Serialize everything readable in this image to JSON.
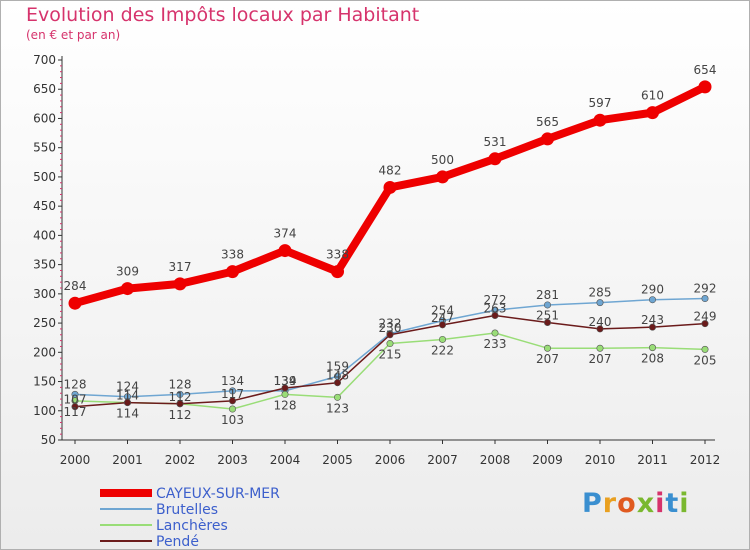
{
  "title": "Evolution des Impôts locaux par Habitant",
  "subtitle": "(en € et par an)",
  "logo": {
    "letters": [
      "P",
      "r",
      "o",
      "x",
      "i",
      "t",
      "i"
    ]
  },
  "chart_data": {
    "type": "line",
    "title": "Evolution des Impôts locaux par Habitant",
    "subtitle": "(en € et par an)",
    "xlabel": "",
    "ylabel": "",
    "ylim": [
      50,
      700
    ],
    "yticks": [
      50,
      100,
      150,
      200,
      250,
      300,
      350,
      400,
      450,
      500,
      550,
      600,
      650,
      700
    ],
    "x": [
      "2000",
      "2001",
      "2002",
      "2003",
      "2004",
      "2005",
      "2006",
      "2007",
      "2008",
      "2009",
      "2010",
      "2011",
      "2012"
    ],
    "grid": false,
    "legend_position": "bottom-left",
    "series": [
      {
        "name": "CAYEUX-SUR-MER",
        "color": "#ee0000",
        "emphasis": true,
        "values": [
          284,
          309,
          317,
          338,
          374,
          338,
          482,
          500,
          531,
          565,
          597,
          610,
          654
        ]
      },
      {
        "name": "Brutelles",
        "color": "#6fa6d2",
        "emphasis": false,
        "values": [
          128,
          124,
          128,
          134,
          134,
          159,
          232,
          254,
          272,
          281,
          285,
          290,
          292
        ]
      },
      {
        "name": "Lanchères",
        "color": "#99dd77",
        "emphasis": false,
        "values": [
          117,
          114,
          112,
          103,
          128,
          123,
          215,
          222,
          233,
          207,
          207,
          208,
          205
        ]
      },
      {
        "name": "Pendé",
        "color": "#6b1b1b",
        "emphasis": false,
        "values": [
          107,
          114,
          112,
          117,
          139,
          148,
          230,
          247,
          263,
          251,
          240,
          243,
          249
        ]
      }
    ]
  }
}
